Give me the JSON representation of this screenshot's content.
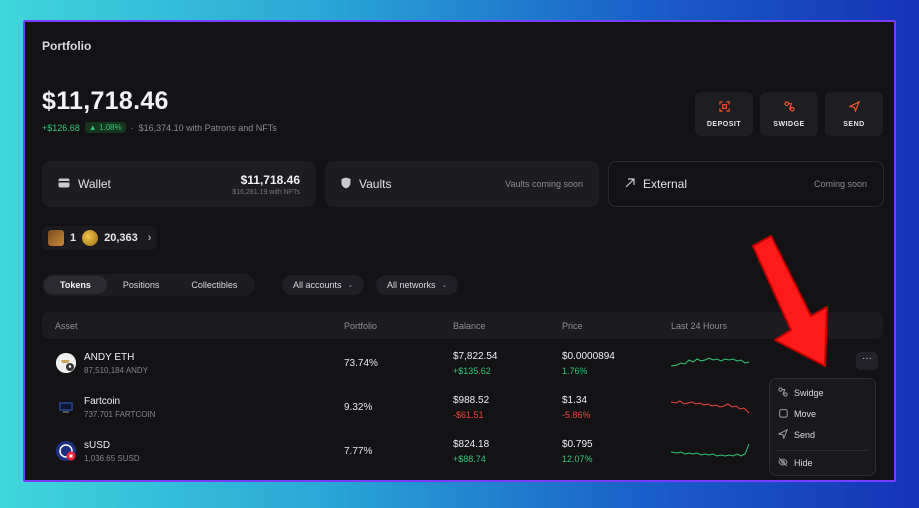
{
  "header": {
    "title": "Portfolio",
    "total": "$11,718.46",
    "gain": "+$126.68",
    "gain_pct": "▲ 1.08%",
    "separator": "·",
    "extra": "$16,374.10 with Patrons and NFTs"
  },
  "actions": [
    {
      "label": "DEPOSIT",
      "icon": "deposit-icon"
    },
    {
      "label": "SWIDGE",
      "icon": "swidge-icon"
    },
    {
      "label": "SEND",
      "icon": "send-icon"
    }
  ],
  "cards": {
    "wallet": {
      "label": "Wallet",
      "value": "$11,718.46",
      "sub": "$16,281.19 with NFTs"
    },
    "vaults": {
      "label": "Vaults",
      "note": "Vaults coming soon"
    },
    "external": {
      "label": "External",
      "note": "Coming soon"
    }
  },
  "nfts": {
    "count": "1",
    "coins": "20,363",
    "chevron": "›"
  },
  "tabs": [
    "Tokens",
    "Positions",
    "Collectibles"
  ],
  "filters": {
    "accounts": "All accounts",
    "networks": "All networks",
    "caret": "⌄"
  },
  "table": {
    "columns": [
      "Asset",
      "Portfolio",
      "Balance",
      "Price",
      "Last 24 Hours"
    ],
    "rows": [
      {
        "name": "ANDY ETH",
        "amount": "87,510,184 ANDY",
        "portfolio": "73.74%",
        "balance": "$7,822.54",
        "balance_change": "+$135.62",
        "price": "$0.0000894",
        "price_change": "1.76%",
        "trend": "up"
      },
      {
        "name": "Fartcoin",
        "amount": "737.701 FARTCOIN",
        "portfolio": "9.32%",
        "balance": "$988.52",
        "balance_change": "-$61.51",
        "price": "$1.34",
        "price_change": "-5.86%",
        "trend": "down"
      },
      {
        "name": "sUSD",
        "amount": "1,036.65 SUSD",
        "portfolio": "7.77%",
        "balance": "$824.18",
        "balance_change": "+$88.74",
        "price": "$0.795",
        "price_change": "12.07%",
        "trend": "up"
      }
    ]
  },
  "more_button": "···",
  "menu": [
    {
      "label": "Swidge",
      "icon": "swidge-icon"
    },
    {
      "label": "Move",
      "icon": "move-icon"
    },
    {
      "label": "Send",
      "icon": "send-icon"
    },
    {
      "label": "Hide",
      "icon": "eye-off-icon"
    }
  ],
  "colors": {
    "accent": "#ff5a2a",
    "positive": "#2fc774",
    "negative": "#f0463c",
    "frame": "#7a3dff",
    "arrow": "#ff1a1a"
  }
}
